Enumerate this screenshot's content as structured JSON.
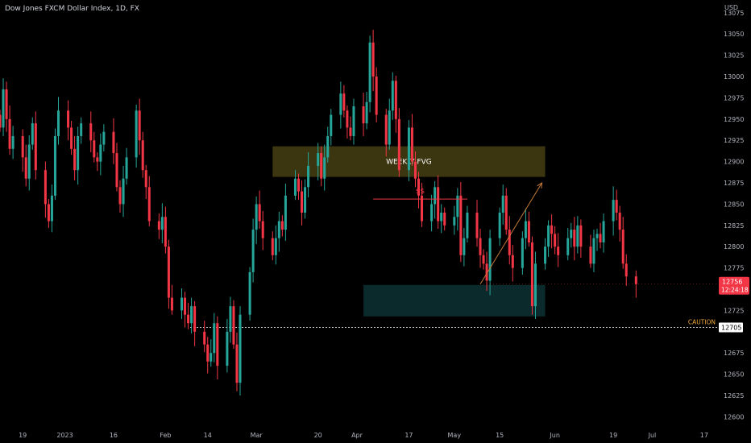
{
  "header": {
    "title": "Dow Jones FXCM Dollar Index, 1D, FX",
    "currency": "USD"
  },
  "colors": {
    "up": "#26a69a",
    "down": "#f23645",
    "background": "#000000",
    "text": "#b2b5be",
    "fvg_fill": "#3b3510",
    "demand_fill": "#0b2a2b",
    "liquidity_line": "#f23645",
    "arrow": "#c57a3a",
    "caution": "#f0a838"
  },
  "chart_data": {
    "type": "candlestick",
    "y_axis": {
      "range": [
        12590,
        13090
      ],
      "ticks": [
        12600,
        12625,
        12650,
        12675,
        12725,
        12750,
        12775,
        12800,
        12825,
        12850,
        12875,
        12900,
        12925,
        12950,
        12975,
        13000,
        13025,
        13050,
        13075
      ]
    },
    "x_axis": {
      "range": [
        "2022-12-12",
        "2023-07-21"
      ],
      "ticks": [
        {
          "date": "2022-12-19",
          "label": "19"
        },
        {
          "date": "2023-01-01",
          "label": "2023"
        },
        {
          "date": "2023-01-16",
          "label": "16"
        },
        {
          "date": "2023-02-01",
          "label": "Feb"
        },
        {
          "date": "2023-02-14",
          "label": "14"
        },
        {
          "date": "2023-03-01",
          "label": "Mar"
        },
        {
          "date": "2023-03-20",
          "label": "20"
        },
        {
          "date": "2023-04-01",
          "label": "Apr"
        },
        {
          "date": "2023-04-17",
          "label": "17"
        },
        {
          "date": "2023-05-01",
          "label": "May"
        },
        {
          "date": "2023-05-15",
          "label": "15"
        },
        {
          "date": "2023-06-01",
          "label": "Jun"
        },
        {
          "date": "2023-06-19",
          "label": "19"
        },
        {
          "date": "2023-07-01",
          "label": "Jul"
        },
        {
          "date": "2023-07-17",
          "label": "17"
        }
      ]
    },
    "closes": [
      12940,
      12985,
      12950,
      12915,
      12930,
      12905,
      12880,
      12920,
      12945,
      12890,
      12850,
      12830,
      12860,
      12930,
      12960,
      12940,
      12915,
      12890,
      12930,
      12945,
      12925,
      12905,
      12900,
      12920,
      12935,
      12910,
      12870,
      12850,
      12880,
      12905,
      12960,
      12925,
      12890,
      12870,
      12830,
      12820,
      12835,
      12800,
      12740,
      12725,
      12740,
      12720,
      12710,
      12730,
      12700,
      12685,
      12665,
      12675,
      12710,
      12660,
      12700,
      12730,
      12685,
      12640,
      12720,
      12770,
      12820,
      12850,
      12830,
      12810,
      12790,
      12810,
      12830,
      12820,
      12860,
      12880,
      12865,
      12840,
      12870,
      12895,
      12910,
      12880,
      12905,
      12930,
      12955,
      12980,
      12960,
      12940,
      12930,
      12965,
      12945,
      12970,
      13040,
      13000,
      12955,
      12920,
      12960,
      12995,
      12950,
      12890,
      12940,
      12900,
      12880,
      12860,
      12830,
      12850,
      12870,
      12830,
      12840,
      12825,
      12835,
      12860,
      12790,
      12810,
      12840,
      12810,
      12790,
      12780,
      12760,
      12810,
      12840,
      12860,
      12820,
      12790,
      12775,
      12810,
      12830,
      12805,
      12730,
      12780,
      12800,
      12825,
      12815,
      12800,
      12790,
      12810,
      12820,
      12800,
      12825,
      12800,
      12780,
      12810,
      12815,
      12805,
      12830,
      12855,
      12840,
      12820,
      12780,
      12765,
      12756
    ],
    "current_price": 12756,
    "current_price_label": "12756",
    "countdown": "12:24:18",
    "caution_level": 12705,
    "caution_price_label": "12705",
    "zones": [
      {
        "label": "WEEKLY FVG",
        "start": "2023-03-06",
        "end": "2023-05-29",
        "top": 12918,
        "bottom": 12882
      },
      {
        "label": "",
        "start": "2023-04-03",
        "end": "2023-05-29",
        "top": 12755,
        "bottom": 12718
      }
    ],
    "liquidity": {
      "label": "$$",
      "start": "2023-04-06",
      "end": "2023-05-05",
      "level": 12856
    },
    "arrow": {
      "from_date": "2023-05-09",
      "from_price": 12756,
      "to_date": "2023-05-28",
      "to_price": 12875
    }
  },
  "labels": {
    "caution": "CAUTION"
  }
}
